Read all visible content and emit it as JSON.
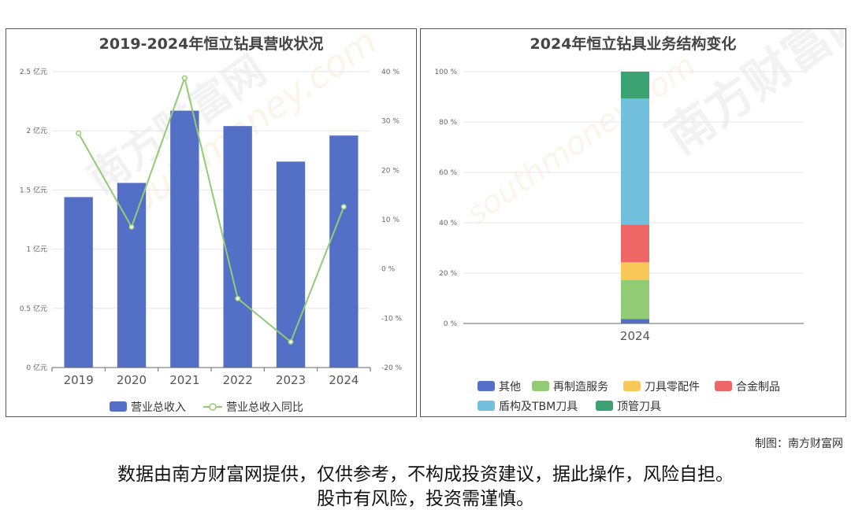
{
  "chart_data": [
    {
      "type": "bar+line",
      "title": "2019-2024年恒立钻具营收状况",
      "categories": [
        "2019",
        "2020",
        "2021",
        "2022",
        "2023",
        "2024"
      ],
      "y_left": {
        "ylim": [
          0,
          2.5
        ],
        "ticks": [
          0,
          0.5,
          1,
          1.5,
          2,
          2.5
        ],
        "tick_labels": [
          "0 亿元",
          "0.5 亿元",
          "1 亿元",
          "1.5 亿元",
          "2 亿元",
          "2.5 亿元"
        ]
      },
      "y_right": {
        "ylim": [
          -20,
          40
        ],
        "ticks": [
          -20,
          -10,
          0,
          10,
          20,
          30,
          40
        ],
        "tick_labels": [
          "-20 %",
          "-10 %",
          "0 %",
          "10 %",
          "20 %",
          "30 %",
          "40 %"
        ]
      },
      "series": [
        {
          "name": "营业总收入",
          "kind": "bar",
          "axis": "left",
          "color": "#5470c6",
          "values": [
            1.44,
            1.56,
            2.17,
            2.04,
            1.74,
            1.96
          ]
        },
        {
          "name": "营业总收入同比",
          "kind": "line",
          "axis": "right",
          "color": "#91cc75",
          "values": [
            27.5,
            8.5,
            38.7,
            -6.0,
            -14.8,
            12.6
          ]
        }
      ],
      "legend_position": "bottom",
      "grid": true
    },
    {
      "type": "stacked-bar",
      "title": "2024年恒立钻具业务结构变化",
      "categories": [
        "2024"
      ],
      "ylim": [
        0,
        100
      ],
      "ticks": [
        0,
        20,
        40,
        60,
        80,
        100
      ],
      "tick_labels": [
        "0 %",
        "20 %",
        "40 %",
        "60 %",
        "80 %",
        "100 %"
      ],
      "series": [
        {
          "name": "其他",
          "color": "#5470c6",
          "values": [
            1.8
          ]
        },
        {
          "name": "再制造服务",
          "color": "#91cc75",
          "values": [
            15.5
          ]
        },
        {
          "name": "刀具零配件",
          "color": "#fac858",
          "values": [
            7.0
          ]
        },
        {
          "name": "合金制品",
          "color": "#ee6666",
          "values": [
            15.0
          ]
        },
        {
          "name": "盾构及TBM刀具",
          "color": "#73c0de",
          "values": [
            50.0
          ]
        },
        {
          "name": "顶管刀具",
          "color": "#3ba272",
          "values": [
            10.7
          ]
        }
      ],
      "legend_position": "bottom",
      "grid": true
    }
  ],
  "watermark": {
    "cn": "南方财富网",
    "en": "southmoney.com"
  },
  "credit": "制图：南方财富网",
  "disclaimer_line1": "数据由南方财富网提供，仅供参考，不构成投资建议，据此操作，风险自担。",
  "disclaimer_line2": "股市有风险，投资需谨慎。"
}
